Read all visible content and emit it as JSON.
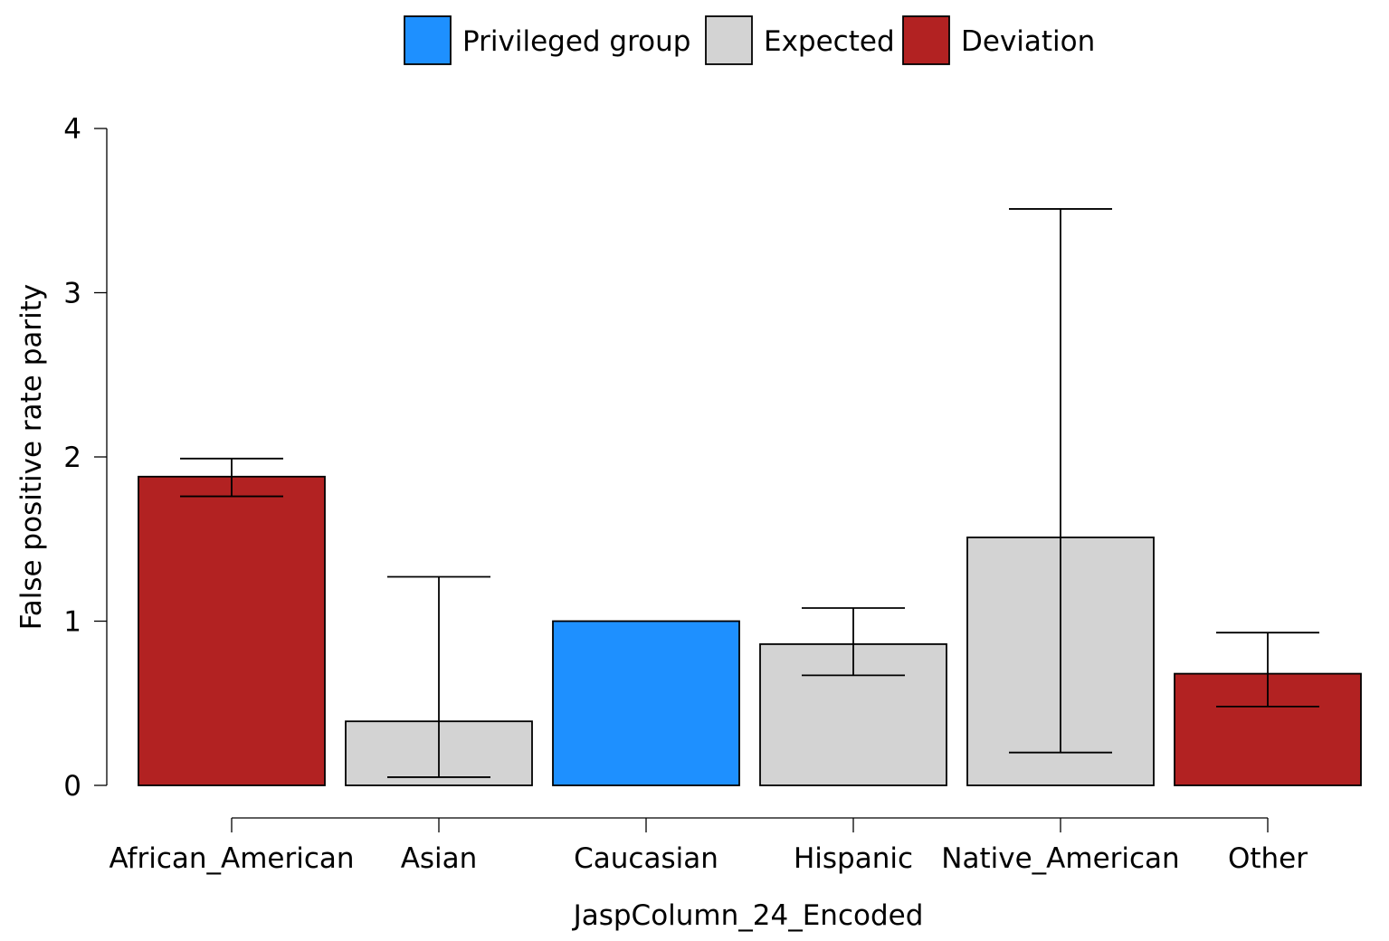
{
  "chart_data": {
    "type": "bar",
    "title": "",
    "xlabel": "JaspColumn_24_Encoded",
    "ylabel": "False positive rate parity",
    "ylim": [
      0,
      4
    ],
    "yticks": [
      "0",
      "1",
      "2",
      "3",
      "4"
    ],
    "categories": [
      "African_American",
      "Asian",
      "Caucasian",
      "Hispanic",
      "Native_American",
      "Other"
    ],
    "values": [
      1.88,
      0.39,
      1.0,
      0.86,
      1.51,
      0.68
    ],
    "error_low": [
      1.76,
      0.05,
      null,
      0.67,
      0.2,
      0.48
    ],
    "error_high": [
      1.99,
      1.27,
      null,
      1.08,
      3.51,
      0.93
    ],
    "bar_roles": [
      "Deviation",
      "Expected",
      "Privileged group",
      "Expected",
      "Expected",
      "Deviation"
    ],
    "legend": {
      "placement": "top-center",
      "entries": [
        {
          "label": "Privileged group",
          "color": "#1e90ff"
        },
        {
          "label": "Expected",
          "color": "#d3d3d3"
        },
        {
          "label": "Deviation",
          "color": "#b22222"
        }
      ]
    },
    "grid": false
  }
}
